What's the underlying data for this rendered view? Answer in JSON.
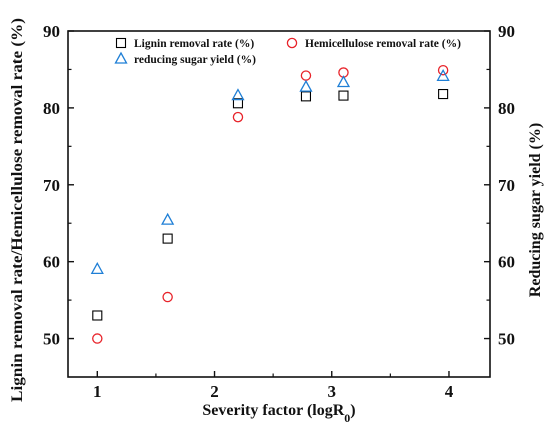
{
  "chart_data": {
    "type": "scatter",
    "xlabel": "Severity factor (logR",
    "xlabel_subscript": "0",
    "xlabel_close": ")",
    "ylabel": "Lignin removal rate/Hemicellulose removal rate (%)",
    "y2label": "Reducing sugar yield (%)",
    "xlim": [
      0.75,
      4.35
    ],
    "ylim": [
      45,
      90
    ],
    "y2lim": [
      45,
      90
    ],
    "xticks": [
      "1",
      "2",
      "3",
      "4"
    ],
    "yticks": [
      "50",
      "60",
      "70",
      "80",
      "90"
    ],
    "y2ticks": [
      "50",
      "60",
      "70",
      "80",
      "90"
    ],
    "legend_placement": "top",
    "series": [
      {
        "name": "Lignin removal rate (%)",
        "marker": "square",
        "color": "#000000",
        "axis": "left",
        "x": [
          1.0,
          1.6,
          2.2,
          2.78,
          3.1,
          3.95
        ],
        "y": [
          53.0,
          63.0,
          80.6,
          81.5,
          81.6,
          81.8
        ]
      },
      {
        "name": "Hemicellulose removal rate (%)",
        "marker": "circle",
        "color": "#e8232a",
        "axis": "left",
        "x": [
          1.0,
          1.6,
          2.2,
          2.78,
          3.1,
          3.95
        ],
        "y": [
          50.0,
          55.4,
          78.8,
          84.2,
          84.6,
          84.9
        ]
      },
      {
        "name": "reducing sugar yield (%)",
        "marker": "triangle",
        "color": "#1f7fd6",
        "axis": "right",
        "x": [
          1.0,
          1.6,
          2.2,
          2.78,
          3.1,
          3.95
        ],
        "y": [
          59.0,
          65.4,
          81.6,
          82.7,
          83.3,
          84.1
        ]
      }
    ]
  }
}
